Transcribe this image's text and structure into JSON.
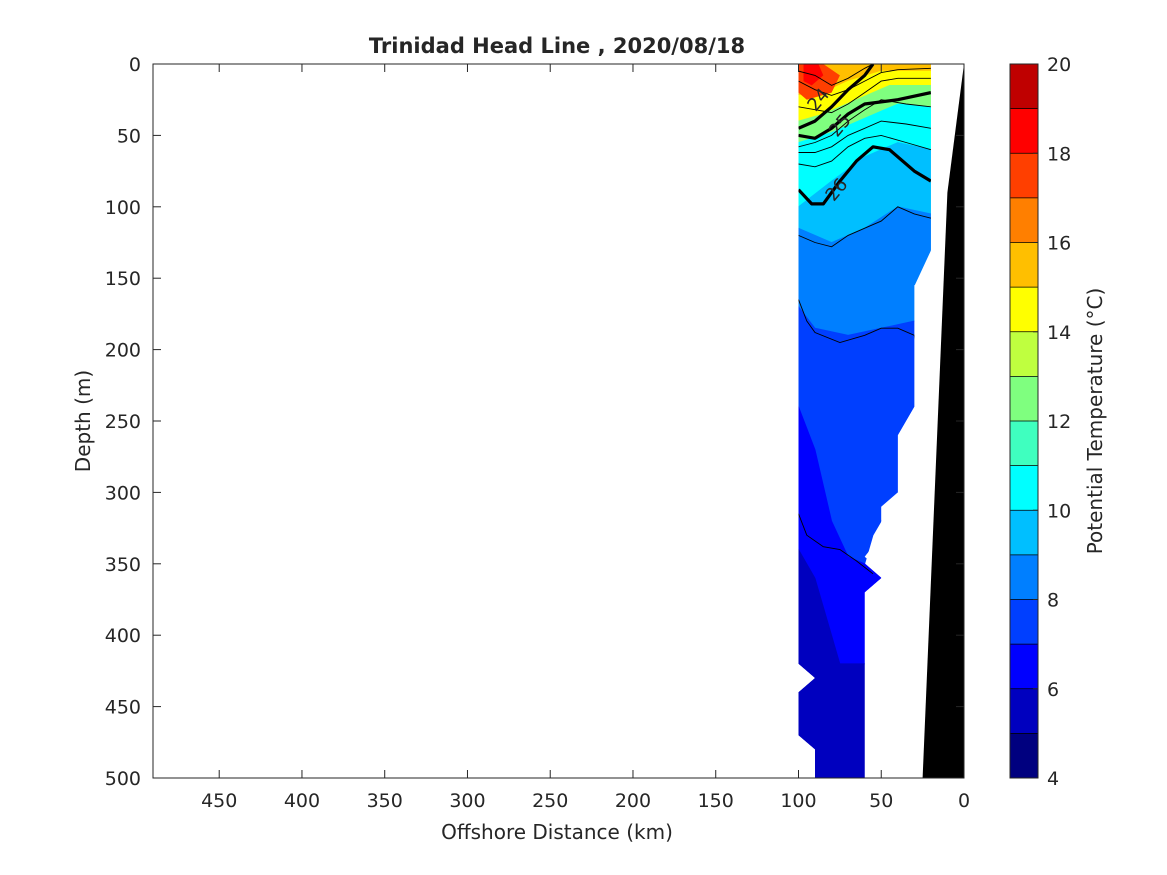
{
  "chart_data": {
    "type": "heatmap",
    "subtype": "filled-contour-section",
    "title": "Trinidad Head Line , 2020/08/18",
    "xlabel": "Offshore Distance (km)",
    "ylabel": "Depth (m)",
    "x_reversed": true,
    "y_reversed": true,
    "xlim": [
      490,
      0
    ],
    "ylim": [
      0,
      500
    ],
    "x_ticks": [
      450,
      400,
      350,
      300,
      250,
      200,
      150,
      100,
      50,
      0
    ],
    "y_ticks": [
      0,
      50,
      100,
      150,
      200,
      250,
      300,
      350,
      400,
      450,
      500
    ],
    "colorbar": {
      "label": "Potential Temperature (°C)",
      "range": [
        4,
        20
      ],
      "ticks": [
        4,
        6,
        8,
        10,
        12,
        14,
        16,
        18,
        20
      ],
      "levels": [
        4,
        5,
        6,
        7,
        8,
        9,
        10,
        11,
        12,
        13,
        14,
        15,
        16,
        17,
        18,
        19,
        20
      ],
      "colors": [
        "#00007f",
        "#0000bf",
        "#0000ff",
        "#003fff",
        "#007fff",
        "#00bfff",
        "#00ffff",
        "#3fffbf",
        "#7fff7f",
        "#bfff3f",
        "#ffff00",
        "#ffbf00",
        "#ff7f00",
        "#ff3f00",
        "#ff0000",
        "#bf0000"
      ]
    },
    "temperature_bands": [
      {
        "t": 15,
        "poly": [
          [
            100,
            0
          ],
          [
            20,
            0
          ],
          [
            20,
            5
          ],
          [
            50,
            5
          ],
          [
            70,
            12
          ],
          [
            85,
            20
          ],
          [
            100,
            22
          ]
        ]
      },
      {
        "t": 14,
        "poly": [
          [
            100,
            22
          ],
          [
            85,
            20
          ],
          [
            70,
            12
          ],
          [
            50,
            5
          ],
          [
            20,
            5
          ],
          [
            20,
            15
          ],
          [
            45,
            15
          ],
          [
            65,
            25
          ],
          [
            85,
            35
          ],
          [
            100,
            40
          ]
        ]
      },
      {
        "t": 12,
        "poly": [
          [
            100,
            40
          ],
          [
            85,
            35
          ],
          [
            65,
            25
          ],
          [
            45,
            15
          ],
          [
            20,
            15
          ],
          [
            20,
            30
          ],
          [
            40,
            28
          ],
          [
            60,
            38
          ],
          [
            80,
            48
          ],
          [
            100,
            55
          ]
        ]
      },
      {
        "t": 10,
        "poly": [
          [
            100,
            55
          ],
          [
            80,
            48
          ],
          [
            60,
            38
          ],
          [
            40,
            28
          ],
          [
            20,
            30
          ],
          [
            20,
            60
          ],
          [
            40,
            55
          ],
          [
            60,
            65
          ],
          [
            80,
            82
          ],
          [
            100,
            100
          ]
        ]
      },
      {
        "t": 9,
        "poly": [
          [
            100,
            100
          ],
          [
            80,
            82
          ],
          [
            60,
            65
          ],
          [
            40,
            55
          ],
          [
            20,
            60
          ],
          [
            20,
            105
          ],
          [
            40,
            100
          ],
          [
            60,
            115
          ],
          [
            80,
            125
          ],
          [
            100,
            115
          ]
        ]
      },
      {
        "t": 8,
        "poly": [
          [
            100,
            115
          ],
          [
            80,
            125
          ],
          [
            60,
            115
          ],
          [
            40,
            100
          ],
          [
            20,
            105
          ],
          [
            20,
            130
          ],
          [
            30,
            155
          ],
          [
            30,
            180
          ],
          [
            50,
            185
          ],
          [
            70,
            190
          ],
          [
            90,
            185
          ],
          [
            100,
            170
          ]
        ]
      },
      {
        "t": 7,
        "poly": [
          [
            100,
            170
          ],
          [
            90,
            185
          ],
          [
            70,
            190
          ],
          [
            50,
            185
          ],
          [
            30,
            180
          ],
          [
            30,
            240
          ],
          [
            40,
            260
          ],
          [
            40,
            300
          ],
          [
            55,
            330
          ],
          [
            60,
            350
          ],
          [
            70,
            345
          ],
          [
            80,
            320
          ],
          [
            90,
            270
          ],
          [
            100,
            240
          ]
        ]
      },
      {
        "t": 6,
        "poly": [
          [
            100,
            240
          ],
          [
            90,
            270
          ],
          [
            80,
            320
          ],
          [
            70,
            345
          ],
          [
            60,
            350
          ],
          [
            50,
            360
          ],
          [
            60,
            370
          ],
          [
            60,
            420
          ],
          [
            75,
            420
          ],
          [
            90,
            360
          ],
          [
            100,
            340
          ]
        ]
      },
      {
        "t": 5,
        "poly": [
          [
            100,
            340
          ],
          [
            90,
            360
          ],
          [
            75,
            420
          ],
          [
            60,
            420
          ],
          [
            60,
            500
          ],
          [
            90,
            500
          ],
          [
            90,
            480
          ],
          [
            100,
            470
          ],
          [
            100,
            440
          ],
          [
            90,
            430
          ],
          [
            100,
            420
          ]
        ]
      }
    ],
    "warm_core": {
      "t": 17,
      "poly": [
        [
          100,
          0
        ],
        [
          85,
          0
        ],
        [
          75,
          8
        ],
        [
          80,
          20
        ],
        [
          95,
          25
        ],
        [
          100,
          20
        ]
      ]
    },
    "hot_spot": {
      "t": 18,
      "poly": [
        [
          97,
          0
        ],
        [
          88,
          0
        ],
        [
          85,
          8
        ],
        [
          92,
          15
        ],
        [
          97,
          12
        ]
      ]
    },
    "data_mask_polygon": [
      [
        100,
        0
      ],
      [
        20,
        0
      ],
      [
        20,
        150
      ],
      [
        30,
        155
      ],
      [
        30,
        240
      ],
      [
        40,
        260
      ],
      [
        40,
        300
      ],
      [
        50,
        310
      ],
      [
        50,
        330
      ],
      [
        60,
        345
      ],
      [
        50,
        355
      ],
      [
        50,
        360
      ],
      [
        60,
        370
      ],
      [
        60,
        500
      ],
      [
        90,
        500
      ],
      [
        90,
        480
      ],
      [
        100,
        470
      ],
      [
        100,
        440
      ],
      [
        90,
        430
      ],
      [
        100,
        420
      ],
      [
        100,
        400
      ]
    ],
    "bathymetry_polygon": [
      [
        0,
        0
      ],
      [
        10,
        90
      ],
      [
        25,
        500
      ],
      [
        0,
        500
      ]
    ],
    "contour_labels": [
      {
        "text": "24",
        "x": 88,
        "y": 25
      },
      {
        "text": "25",
        "x": 75,
        "y": 43
      },
      {
        "text": "26",
        "x": 77,
        "y": 88
      }
    ],
    "thick_contours": [
      [
        [
          100,
          45
        ],
        [
          90,
          40
        ],
        [
          80,
          30
        ],
        [
          70,
          18
        ],
        [
          60,
          8
        ],
        [
          55,
          0
        ]
      ],
      [
        [
          100,
          50
        ],
        [
          90,
          52
        ],
        [
          80,
          45
        ],
        [
          70,
          35
        ],
        [
          60,
          28
        ],
        [
          40,
          25
        ],
        [
          20,
          20
        ]
      ],
      [
        [
          100,
          88
        ],
        [
          92,
          98
        ],
        [
          85,
          98
        ],
        [
          75,
          82
        ],
        [
          65,
          68
        ],
        [
          55,
          58
        ],
        [
          45,
          60
        ],
        [
          30,
          75
        ],
        [
          20,
          82
        ]
      ]
    ],
    "thin_contours": [
      [
        [
          100,
          5
        ],
        [
          90,
          8
        ],
        [
          80,
          15
        ],
        [
          70,
          10
        ],
        [
          60,
          3
        ],
        [
          55,
          0
        ]
      ],
      [
        [
          100,
          12
        ],
        [
          90,
          18
        ],
        [
          80,
          22
        ],
        [
          70,
          18
        ],
        [
          60,
          12
        ],
        [
          50,
          6
        ],
        [
          40,
          4
        ],
        [
          20,
          3
        ]
      ],
      [
        [
          100,
          30
        ],
        [
          90,
          32
        ],
        [
          80,
          34
        ],
        [
          70,
          28
        ],
        [
          60,
          20
        ],
        [
          50,
          12
        ],
        [
          40,
          10
        ],
        [
          20,
          10
        ]
      ],
      [
        [
          100,
          58
        ],
        [
          90,
          55
        ],
        [
          80,
          50
        ],
        [
          70,
          40
        ],
        [
          60,
          32
        ],
        [
          50,
          25
        ],
        [
          35,
          28
        ],
        [
          20,
          30
        ]
      ],
      [
        [
          100,
          62
        ],
        [
          90,
          62
        ],
        [
          80,
          58
        ],
        [
          70,
          50
        ],
        [
          60,
          45
        ],
        [
          50,
          40
        ],
        [
          35,
          42
        ],
        [
          20,
          45
        ]
      ],
      [
        [
          100,
          70
        ],
        [
          90,
          72
        ],
        [
          80,
          68
        ],
        [
          70,
          58
        ],
        [
          60,
          52
        ],
        [
          50,
          50
        ],
        [
          35,
          55
        ],
        [
          20,
          60
        ]
      ],
      [
        [
          100,
          120
        ],
        [
          90,
          125
        ],
        [
          80,
          128
        ],
        [
          70,
          120
        ],
        [
          60,
          115
        ],
        [
          50,
          110
        ],
        [
          40,
          100
        ],
        [
          30,
          105
        ],
        [
          20,
          108
        ]
      ],
      [
        [
          100,
          165
        ],
        [
          95,
          180
        ],
        [
          90,
          188
        ],
        [
          75,
          195
        ],
        [
          60,
          190
        ],
        [
          50,
          185
        ],
        [
          40,
          185
        ],
        [
          30,
          190
        ],
        [
          28,
          205
        ]
      ],
      [
        [
          100,
          315
        ],
        [
          95,
          330
        ],
        [
          85,
          338
        ],
        [
          75,
          340
        ],
        [
          65,
          348
        ],
        [
          55,
          357
        ]
      ]
    ]
  }
}
